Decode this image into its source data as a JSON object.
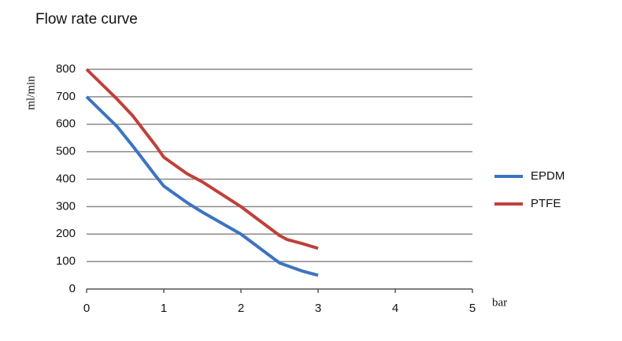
{
  "chart_data": {
    "type": "line",
    "title": "Flow rate curve",
    "y_label": "ml/min",
    "x_label": "bar",
    "x": [
      0,
      0.4,
      0.6,
      0.9,
      1,
      1.3,
      1.5,
      2,
      2.5,
      2.6,
      2.8,
      3
    ],
    "series": [
      {
        "name": "EPDM",
        "color": "#3c74c0",
        "values": [
          700,
          590,
          520,
          410,
          375,
          315,
          280,
          200,
          95,
          85,
          65,
          50
        ]
      },
      {
        "name": "PTFE",
        "color": "#c0403a",
        "values": [
          800,
          690,
          630,
          520,
          480,
          420,
          390,
          300,
          195,
          180,
          165,
          148
        ]
      }
    ],
    "xlim": [
      0,
      5
    ],
    "xticks": [
      0,
      1,
      2,
      3,
      4,
      5
    ],
    "ylim": [
      0,
      800
    ],
    "yticks": [
      0,
      100,
      200,
      300,
      400,
      500,
      600,
      700,
      800
    ],
    "grid": true,
    "legend": "right"
  }
}
